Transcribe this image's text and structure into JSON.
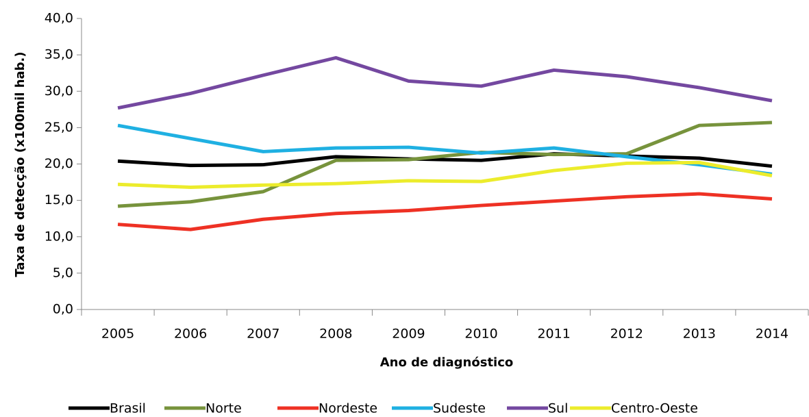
{
  "chart_data": {
    "type": "line",
    "y_label": "Taxa de detecção (x100mil hab.)",
    "x_label": "Ano de diagnóstico",
    "categories": [
      "2005",
      "2006",
      "2007",
      "2008",
      "2009",
      "2010",
      "2011",
      "2012",
      "2013",
      "2014"
    ],
    "series": [
      {
        "name": "Brasil",
        "color": "#000000",
        "values": [
          20.4,
          19.8,
          19.9,
          21.0,
          20.7,
          20.5,
          21.4,
          21.1,
          20.8,
          19.7
        ]
      },
      {
        "name": "Norte",
        "color": "#77933c",
        "values": [
          14.2,
          14.8,
          16.2,
          20.5,
          20.6,
          21.6,
          21.3,
          21.4,
          25.3,
          25.7
        ]
      },
      {
        "name": "Nordeste",
        "color": "#ee3124",
        "values": [
          11.7,
          11.0,
          12.4,
          13.2,
          13.6,
          14.3,
          14.9,
          15.5,
          15.9,
          15.2
        ]
      },
      {
        "name": "Sudeste",
        "color": "#1fb0e2",
        "values": [
          25.3,
          23.5,
          21.7,
          22.2,
          22.3,
          21.5,
          22.2,
          21.0,
          19.9,
          18.6
        ]
      },
      {
        "name": "Sul",
        "color": "#7448a0",
        "values": [
          27.7,
          29.7,
          32.2,
          34.6,
          31.4,
          30.7,
          32.9,
          32.0,
          30.5,
          28.7
        ]
      },
      {
        "name": "Centro-Oeste",
        "color": "#ecec2c",
        "values": [
          17.2,
          16.8,
          17.1,
          17.3,
          17.7,
          17.6,
          19.1,
          20.1,
          20.2,
          18.4
        ]
      }
    ],
    "ylim": [
      0,
      40
    ],
    "yticks": [
      {
        "value": 0,
        "label": "0,0"
      },
      {
        "value": 5,
        "label": "5,0"
      },
      {
        "value": 10,
        "label": "10,0"
      },
      {
        "value": 15,
        "label": "15,0"
      },
      {
        "value": 20,
        "label": "20,0"
      },
      {
        "value": 25,
        "label": "25,0"
      },
      {
        "value": 30,
        "label": "30,0"
      },
      {
        "value": 35,
        "label": "35,0"
      },
      {
        "value": 40,
        "label": "40,0"
      }
    ],
    "grid": false,
    "legend": "bottom"
  }
}
